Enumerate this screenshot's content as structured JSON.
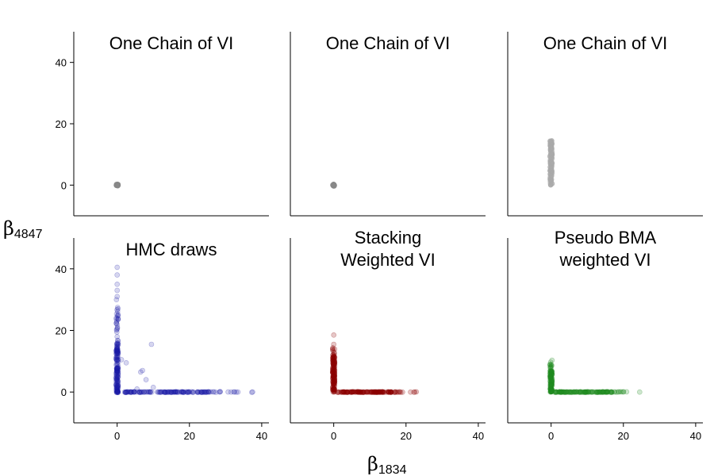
{
  "figure": {
    "xlabel": {
      "symbol": "β",
      "subscript": "1834"
    },
    "ylabel": {
      "symbol": "β",
      "subscript": "4847"
    }
  },
  "chart_data": [
    {
      "type": "scatter",
      "title": [
        "One Chain of VI"
      ],
      "color": "#888888",
      "opacity": 0.6,
      "xlim": [
        -12,
        42
      ],
      "ylim": [
        -10,
        50
      ],
      "xticks": [
        0,
        20,
        40
      ],
      "yticks": [
        0,
        20,
        40
      ],
      "show_xaxis": false,
      "show_yaxis": true,
      "clusters": [
        {
          "x_range": [
            -0.3,
            0.3
          ],
          "y_range": [
            -0.3,
            0.3
          ],
          "n": 20
        }
      ],
      "points": []
    },
    {
      "type": "scatter",
      "title": [
        "One Chain of VI"
      ],
      "color": "#888888",
      "opacity": 0.6,
      "xlim": [
        -12,
        42
      ],
      "ylim": [
        -10,
        50
      ],
      "xticks": [
        0,
        20,
        40
      ],
      "yticks": [
        0,
        20,
        40
      ],
      "show_xaxis": false,
      "show_yaxis": false,
      "clusters": [
        {
          "x_range": [
            -0.3,
            0.3
          ],
          "y_range": [
            -0.3,
            0.3
          ],
          "n": 20
        }
      ],
      "points": []
    },
    {
      "type": "scatter",
      "title": [
        "One Chain of VI"
      ],
      "color": "#aaaaaa",
      "opacity": 0.5,
      "xlim": [
        -12,
        42
      ],
      "ylim": [
        -10,
        50
      ],
      "xticks": [
        0,
        20,
        40
      ],
      "yticks": [
        0,
        20,
        40
      ],
      "show_xaxis": false,
      "show_yaxis": false,
      "clusters": [
        {
          "x_range": [
            -0.3,
            0.3
          ],
          "y_range": [
            0,
            14.5
          ],
          "n": 120
        }
      ],
      "points": []
    },
    {
      "type": "scatter",
      "title": [
        "HMC draws"
      ],
      "color": "#1a1aa6",
      "opacity": 0.18,
      "xlim": [
        -12,
        42
      ],
      "ylim": [
        -10,
        50
      ],
      "xticks": [
        0,
        20,
        40
      ],
      "yticks": [
        0,
        20,
        40
      ],
      "show_xaxis": true,
      "show_yaxis": true,
      "clusters": [
        {
          "x_range": [
            -0.3,
            0.3
          ],
          "y_range": [
            0,
            16
          ],
          "n": 140
        },
        {
          "x_range": [
            -0.3,
            0.3
          ],
          "y_range": [
            16,
            28
          ],
          "n": 25
        },
        {
          "x_range": [
            -0.3,
            0.3
          ],
          "y_range": [
            -0.2,
            0.2
          ],
          "n": 10
        },
        {
          "x_range": [
            2,
            26
          ],
          "y_range": [
            -0.1,
            0.1
          ],
          "n": 130
        },
        {
          "x_range": [
            26,
            38
          ],
          "y_range": [
            -0.1,
            0.1
          ],
          "n": 14
        }
      ],
      "points": [
        [
          0,
          31
        ],
        [
          0,
          33
        ],
        [
          0,
          35
        ],
        [
          0,
          38
        ],
        [
          0,
          40.5
        ],
        [
          -0.2,
          30
        ],
        [
          1.2,
          10.5
        ],
        [
          2.5,
          9.5
        ],
        [
          6.5,
          6.5
        ],
        [
          7,
          7
        ],
        [
          8,
          4
        ],
        [
          9.5,
          15.5
        ],
        [
          10,
          1.5
        ],
        [
          5.5,
          1
        ]
      ]
    },
    {
      "type": "scatter",
      "title": [
        "Stacking",
        "Weighted VI"
      ],
      "color": "#8b0000",
      "opacity": 0.22,
      "xlim": [
        -12,
        42
      ],
      "ylim": [
        -10,
        50
      ],
      "xticks": [
        0,
        20,
        40
      ],
      "yticks": [
        0,
        20,
        40
      ],
      "show_xaxis": true,
      "show_yaxis": false,
      "clusters": [
        {
          "x_range": [
            -0.3,
            0.3
          ],
          "y_range": [
            0,
            12
          ],
          "n": 140
        },
        {
          "x_range": [
            -0.3,
            0.3
          ],
          "y_range": [
            12,
            14.5
          ],
          "n": 10
        },
        {
          "x_range": [
            1,
            16
          ],
          "y_range": [
            -0.1,
            0.1
          ],
          "n": 130
        },
        {
          "x_range": [
            16,
            23
          ],
          "y_range": [
            -0.1,
            0.1
          ],
          "n": 14
        }
      ],
      "points": [
        [
          0,
          18.5
        ],
        [
          0,
          15.5
        ]
      ]
    },
    {
      "type": "scatter",
      "title": [
        "Pseudo BMA",
        "weighted VI"
      ],
      "color": "#228b22",
      "opacity": 0.22,
      "xlim": [
        -12,
        42
      ],
      "ylim": [
        -10,
        50
      ],
      "xticks": [
        0,
        20,
        40
      ],
      "yticks": [
        0,
        20,
        40
      ],
      "show_xaxis": true,
      "show_yaxis": false,
      "clusters": [
        {
          "x_range": [
            -0.3,
            0.3
          ],
          "y_range": [
            0,
            7
          ],
          "n": 110
        },
        {
          "x_range": [
            -0.3,
            0.3
          ],
          "y_range": [
            7,
            10.5
          ],
          "n": 12
        },
        {
          "x_range": [
            1,
            17
          ],
          "y_range": [
            -0.1,
            0.1
          ],
          "n": 130
        },
        {
          "x_range": [
            17,
            21
          ],
          "y_range": [
            -0.1,
            0.1
          ],
          "n": 10
        }
      ],
      "points": [
        [
          24.5,
          0
        ]
      ]
    }
  ]
}
